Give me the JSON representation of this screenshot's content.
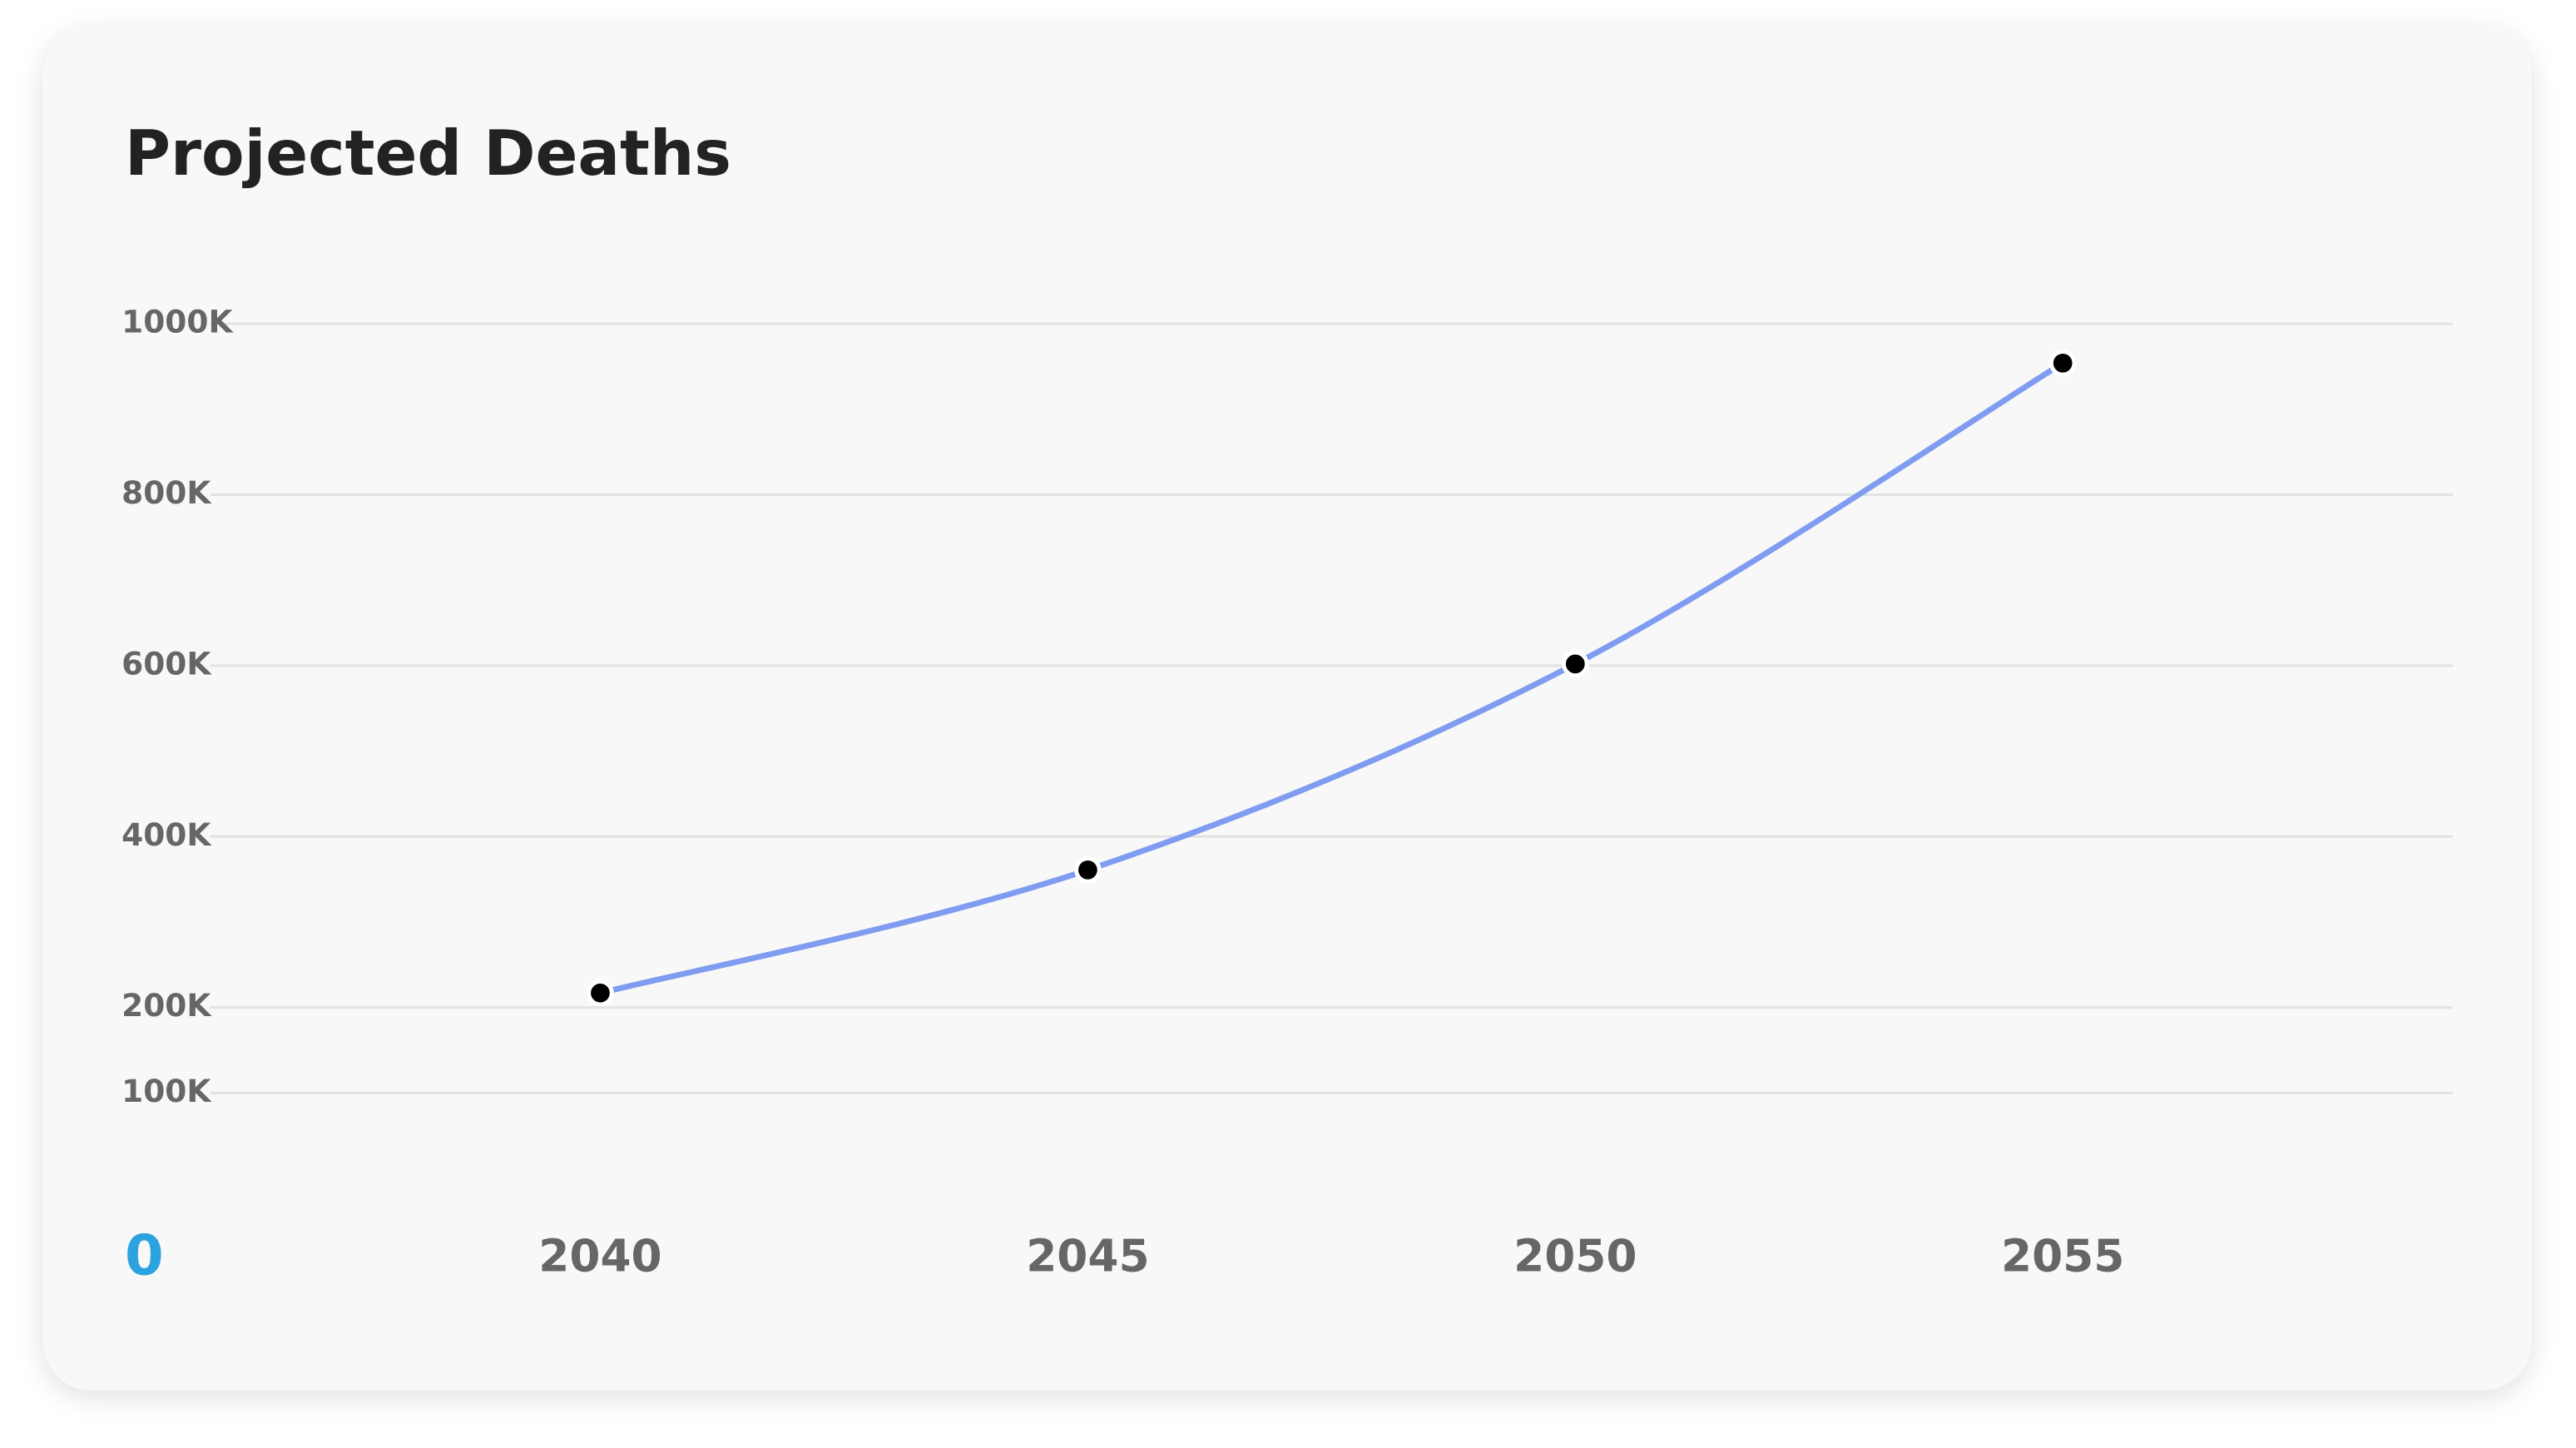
{
  "chart_data": {
    "type": "line",
    "title": "Projected Deaths",
    "origin_label": "0",
    "x": [
      2040,
      2045,
      2050,
      2055
    ],
    "xlim": [
      2036,
      2059
    ],
    "xticks": [
      2040,
      2045,
      2050,
      2055
    ],
    "series": [
      {
        "name": "Projected Deaths",
        "color": "#7f9cf0",
        "values": [
          217000,
          361000,
          602000,
          954000
        ]
      }
    ],
    "ylim": [
      0,
      1000000
    ],
    "yticks": [
      {
        "value": 100000,
        "label": "100K"
      },
      {
        "value": 200000,
        "label": "200K"
      },
      {
        "value": 400000,
        "label": "400K"
      },
      {
        "value": 600000,
        "label": "600K"
      },
      {
        "value": 800000,
        "label": "800K"
      },
      {
        "value": 1000000,
        "label": "1000K"
      }
    ],
    "grid": true,
    "point_color": "#000000"
  }
}
